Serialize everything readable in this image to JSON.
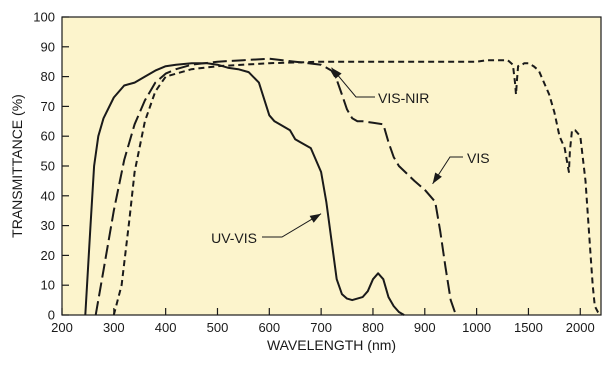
{
  "chart_data": {
    "type": "line",
    "title": "",
    "xlabel": "WAVELENGTH (nm)",
    "ylabel": "TRANSMITTANCE (%)",
    "xlim": [
      200,
      2200
    ],
    "ylim": [
      0,
      100
    ],
    "grid": false,
    "background_color": "#fcf4cc",
    "x_axis_note": "non-uniform scale: 100 nm per division from 200 to 1000 nm, 500 nm per division from 1000 to 2000 nm",
    "x_tick_labels": [
      "200",
      "300",
      "400",
      "500",
      "600",
      "700",
      "800",
      "900",
      "1000",
      "1500",
      "2000"
    ],
    "y_tick_labels": [
      "0",
      "10",
      "20",
      "30",
      "40",
      "50",
      "60",
      "70",
      "80",
      "90",
      "100"
    ],
    "series": [
      {
        "name": "UV-VIS",
        "style": "solid",
        "x": [
          245,
          255,
          262,
          270,
          280,
          300,
          320,
          340,
          360,
          380,
          400,
          420,
          450,
          480,
          500,
          520,
          540,
          560,
          580,
          600,
          610,
          620,
          640,
          650,
          660,
          680,
          700,
          710,
          720,
          730,
          740,
          750,
          760,
          780,
          790,
          800,
          810,
          820,
          830,
          840,
          850,
          860
        ],
        "y": [
          0,
          30,
          50,
          60,
          66,
          73,
          77,
          78,
          80,
          82,
          83.5,
          84,
          84.5,
          84.5,
          84,
          83,
          82.5,
          81.5,
          78,
          67,
          65,
          64,
          62,
          59,
          58,
          56,
          48,
          38,
          25,
          12,
          7,
          5.5,
          5,
          6,
          8,
          12,
          14,
          12,
          6,
          3,
          1,
          0
        ]
      },
      {
        "name": "VIS",
        "style": "long-dash",
        "x": [
          265,
          280,
          300,
          320,
          340,
          360,
          380,
          400,
          420,
          450,
          500,
          550,
          600,
          650,
          700,
          720,
          730,
          740,
          750,
          760,
          770,
          780,
          800,
          820,
          830,
          840,
          850,
          880,
          900,
          920,
          930,
          940,
          950,
          960
        ],
        "y": [
          0,
          15,
          35,
          52,
          64,
          72,
          78,
          81,
          82.5,
          84,
          85,
          85.5,
          86,
          85,
          84,
          82,
          79,
          74,
          69,
          66,
          65,
          65,
          64.5,
          64,
          58,
          53,
          50,
          45,
          42,
          38,
          28,
          16,
          5,
          0
        ]
      },
      {
        "name": "VIS-NIR",
        "style": "short-dash",
        "x": [
          300,
          315,
          330,
          340,
          360,
          380,
          400,
          450,
          500,
          600,
          700,
          800,
          900,
          1000,
          1100,
          1200,
          1300,
          1350,
          1370,
          1380,
          1390,
          1400,
          1420,
          1440,
          1460,
          1500,
          1550,
          1600,
          1700,
          1750,
          1800,
          1850,
          1880,
          1890,
          1900,
          1920,
          1950,
          2000,
          2050,
          2100,
          2120,
          2140,
          2170,
          2200
        ],
        "y": [
          0,
          10,
          32,
          48,
          65,
          75,
          80,
          82.5,
          83.5,
          84.5,
          85,
          85,
          85,
          85,
          85.5,
          85.5,
          85.5,
          84,
          78,
          74,
          79,
          83.5,
          84,
          84,
          84.5,
          84.5,
          83.5,
          82,
          74,
          68,
          60,
          56,
          50,
          48,
          55,
          62,
          62,
          60,
          45,
          20,
          10,
          3,
          1,
          0
        ]
      }
    ],
    "annotations": [
      {
        "text": "VIS-NIR",
        "points_to_series": "VIS-NIR"
      },
      {
        "text": "VIS",
        "points_to_series": "VIS"
      },
      {
        "text": "UV-VIS",
        "points_to_series": "UV-VIS"
      }
    ]
  }
}
